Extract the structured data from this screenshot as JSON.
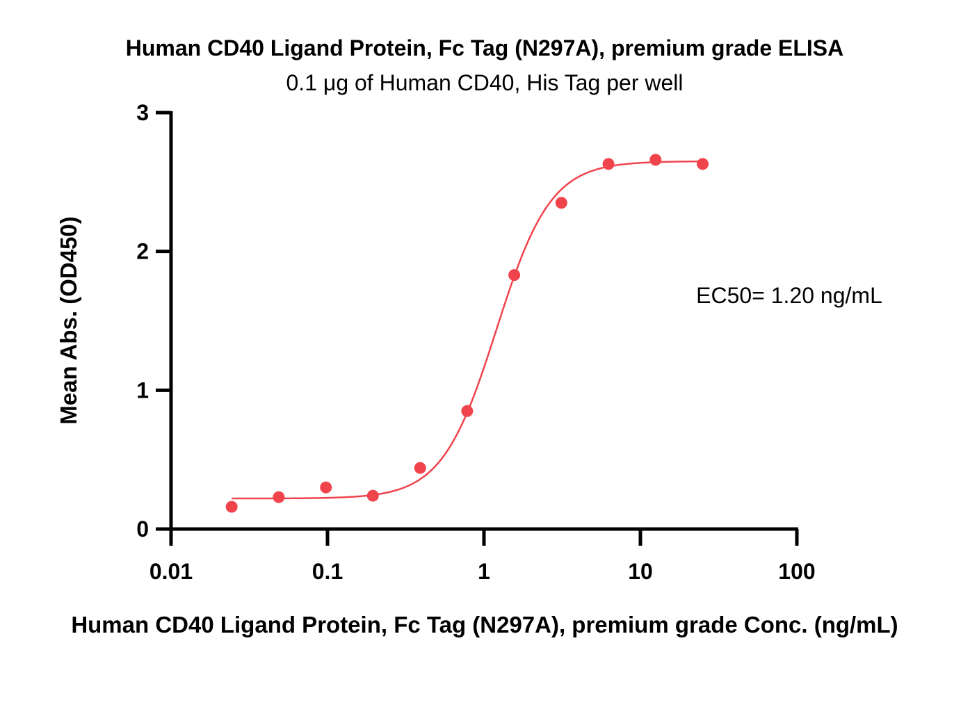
{
  "colors": {
    "series": "#f0444c",
    "axis": "#000000"
  },
  "chart_data": {
    "type": "scatter",
    "title": "Human CD40 Ligand Protein, Fc Tag (N297A), premium grade ELISA",
    "subtitle": "0.1 μg of Human CD40, His Tag per well",
    "xlabel": "Human CD40 Ligand Protein, Fc Tag (N297A), premium grade Conc. (ng/mL)",
    "ylabel": "Mean Abs. (OD450)",
    "x_scale": "log",
    "xlim": [
      0.01,
      100
    ],
    "ylim": [
      0,
      3
    ],
    "x_ticks": [
      {
        "value": 0.01,
        "label": "0.01"
      },
      {
        "value": 0.1,
        "label": "0.1"
      },
      {
        "value": 1,
        "label": "1"
      },
      {
        "value": 10,
        "label": "10"
      },
      {
        "value": 100,
        "label": "100"
      }
    ],
    "y_ticks": [
      {
        "value": 0,
        "label": "0"
      },
      {
        "value": 1,
        "label": "1"
      },
      {
        "value": 2,
        "label": "2"
      },
      {
        "value": 3,
        "label": "3"
      }
    ],
    "grid": false,
    "series": [
      {
        "x": [
          0.0244,
          0.0488,
          0.0977,
          0.195,
          0.391,
          0.781,
          1.5625,
          3.125,
          6.25,
          12.5,
          25
        ],
        "y": [
          0.16,
          0.23,
          0.3,
          0.24,
          0.44,
          0.85,
          1.83,
          2.35,
          2.63,
          2.66,
          2.63
        ]
      }
    ],
    "fit_curve": {
      "model": "4PL",
      "bottom": 0.22,
      "top": 2.65,
      "ec50": 1.2,
      "hill": 2.5
    },
    "annotations": [
      {
        "text": "EC50= 1.20 ng/mL"
      }
    ]
  }
}
